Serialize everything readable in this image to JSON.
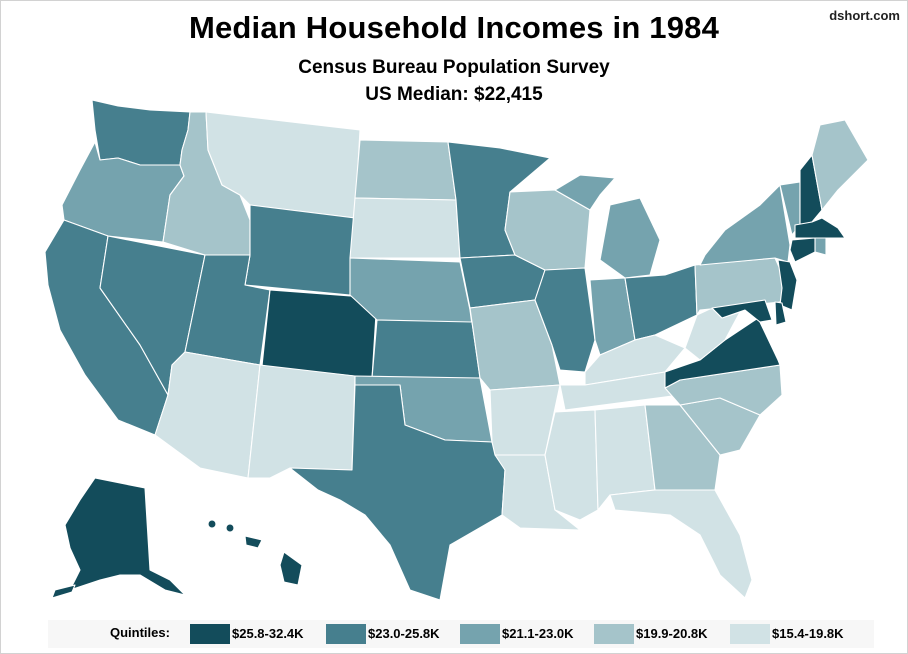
{
  "title": "Median Household Incomes in 1984",
  "subtitle": "Census Bureau Population Survey",
  "us_median": "US Median: $22,415",
  "credit": "dshort.com",
  "legend": {
    "title": "Quintiles:",
    "items": [
      {
        "label": "$25.8-32.4K",
        "color": "#134c5b"
      },
      {
        "label": "$23.0-25.8K",
        "color": "#467f8e"
      },
      {
        "label": "$21.1-23.0K",
        "color": "#75a3ae"
      },
      {
        "label": "$19.9-20.8K",
        "color": "#a5c4ca"
      },
      {
        "label": "$15.4-19.8K",
        "color": "#d1e2e5"
      }
    ]
  },
  "states": [
    {
      "id": "WA",
      "quintile": 2
    },
    {
      "id": "OR",
      "quintile": 3
    },
    {
      "id": "CA",
      "quintile": 2
    },
    {
      "id": "NV",
      "quintile": 2
    },
    {
      "id": "ID",
      "quintile": 4
    },
    {
      "id": "MT",
      "quintile": 5
    },
    {
      "id": "WY",
      "quintile": 2
    },
    {
      "id": "UT",
      "quintile": 2
    },
    {
      "id": "CO",
      "quintile": 1
    },
    {
      "id": "AZ",
      "quintile": 5
    },
    {
      "id": "NM",
      "quintile": 5
    },
    {
      "id": "ND",
      "quintile": 4
    },
    {
      "id": "SD",
      "quintile": 5
    },
    {
      "id": "NE",
      "quintile": 3
    },
    {
      "id": "KS",
      "quintile": 2
    },
    {
      "id": "OK",
      "quintile": 3
    },
    {
      "id": "TX",
      "quintile": 2
    },
    {
      "id": "MN",
      "quintile": 2
    },
    {
      "id": "IA",
      "quintile": 2
    },
    {
      "id": "MO",
      "quintile": 4
    },
    {
      "id": "AR",
      "quintile": 5
    },
    {
      "id": "LA",
      "quintile": 5
    },
    {
      "id": "WI",
      "quintile": 4
    },
    {
      "id": "IL",
      "quintile": 2
    },
    {
      "id": "MI",
      "quintile": 3
    },
    {
      "id": "IN",
      "quintile": 3
    },
    {
      "id": "OH",
      "quintile": 2
    },
    {
      "id": "KY",
      "quintile": 5
    },
    {
      "id": "TN",
      "quintile": 5
    },
    {
      "id": "MS",
      "quintile": 5
    },
    {
      "id": "AL",
      "quintile": 5
    },
    {
      "id": "GA",
      "quintile": 4
    },
    {
      "id": "FL",
      "quintile": 5
    },
    {
      "id": "SC",
      "quintile": 4
    },
    {
      "id": "NC",
      "quintile": 4
    },
    {
      "id": "VA",
      "quintile": 1
    },
    {
      "id": "WV",
      "quintile": 5
    },
    {
      "id": "PA",
      "quintile": 4
    },
    {
      "id": "NY",
      "quintile": 3
    },
    {
      "id": "VT",
      "quintile": 3
    },
    {
      "id": "NH",
      "quintile": 1
    },
    {
      "id": "ME",
      "quintile": 4
    },
    {
      "id": "MA",
      "quintile": 1
    },
    {
      "id": "RI",
      "quintile": 3
    },
    {
      "id": "CT",
      "quintile": 1
    },
    {
      "id": "NJ",
      "quintile": 1
    },
    {
      "id": "DE",
      "quintile": 1
    },
    {
      "id": "MD",
      "quintile": 1
    },
    {
      "id": "AK",
      "quintile": 1
    },
    {
      "id": "HI",
      "quintile": 1
    }
  ]
}
